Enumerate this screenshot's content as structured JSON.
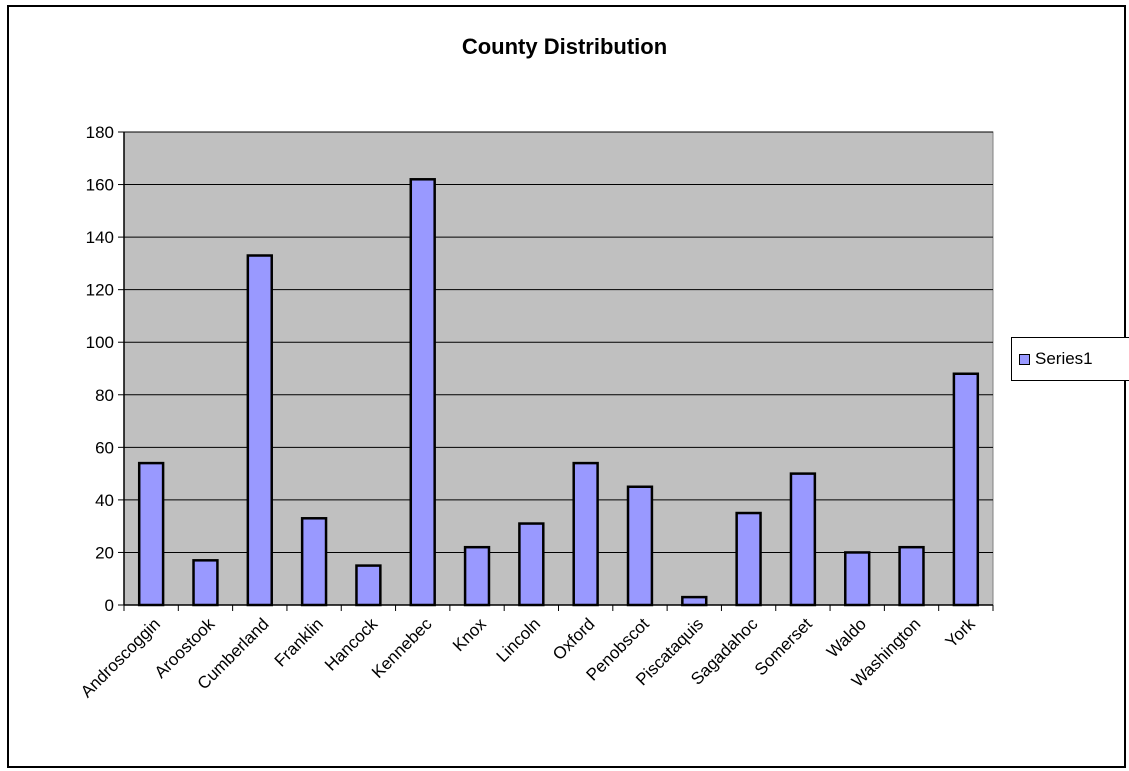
{
  "chart_data": {
    "type": "bar",
    "title": "County Distribution",
    "xlabel": "",
    "ylabel": "",
    "categories": [
      "Androscoggin",
      "Aroostook",
      "Cumberland",
      "Franklin",
      "Hancock",
      "Kennebec",
      "Knox",
      "Lincoln",
      "Oxford",
      "Penobscot",
      "Piscataquis",
      "Sagadahoc",
      "Somerset",
      "Waldo",
      "Washington",
      "York"
    ],
    "series": [
      {
        "name": "Series1",
        "values": [
          54,
          17,
          133,
          33,
          15,
          162,
          22,
          31,
          54,
          45,
          3,
          35,
          50,
          20,
          22,
          88
        ]
      }
    ],
    "ylim": [
      0,
      180
    ],
    "yticks": [
      "0",
      "20",
      "40",
      "60",
      "80",
      "100",
      "120",
      "140",
      "160",
      "180"
    ],
    "grid": true,
    "legend_position": "right",
    "colors": {
      "bar_fill": "#9999ff",
      "bar_stroke": "#000000",
      "plot_background": "#c0c0c0",
      "gridline": "#000000"
    }
  }
}
